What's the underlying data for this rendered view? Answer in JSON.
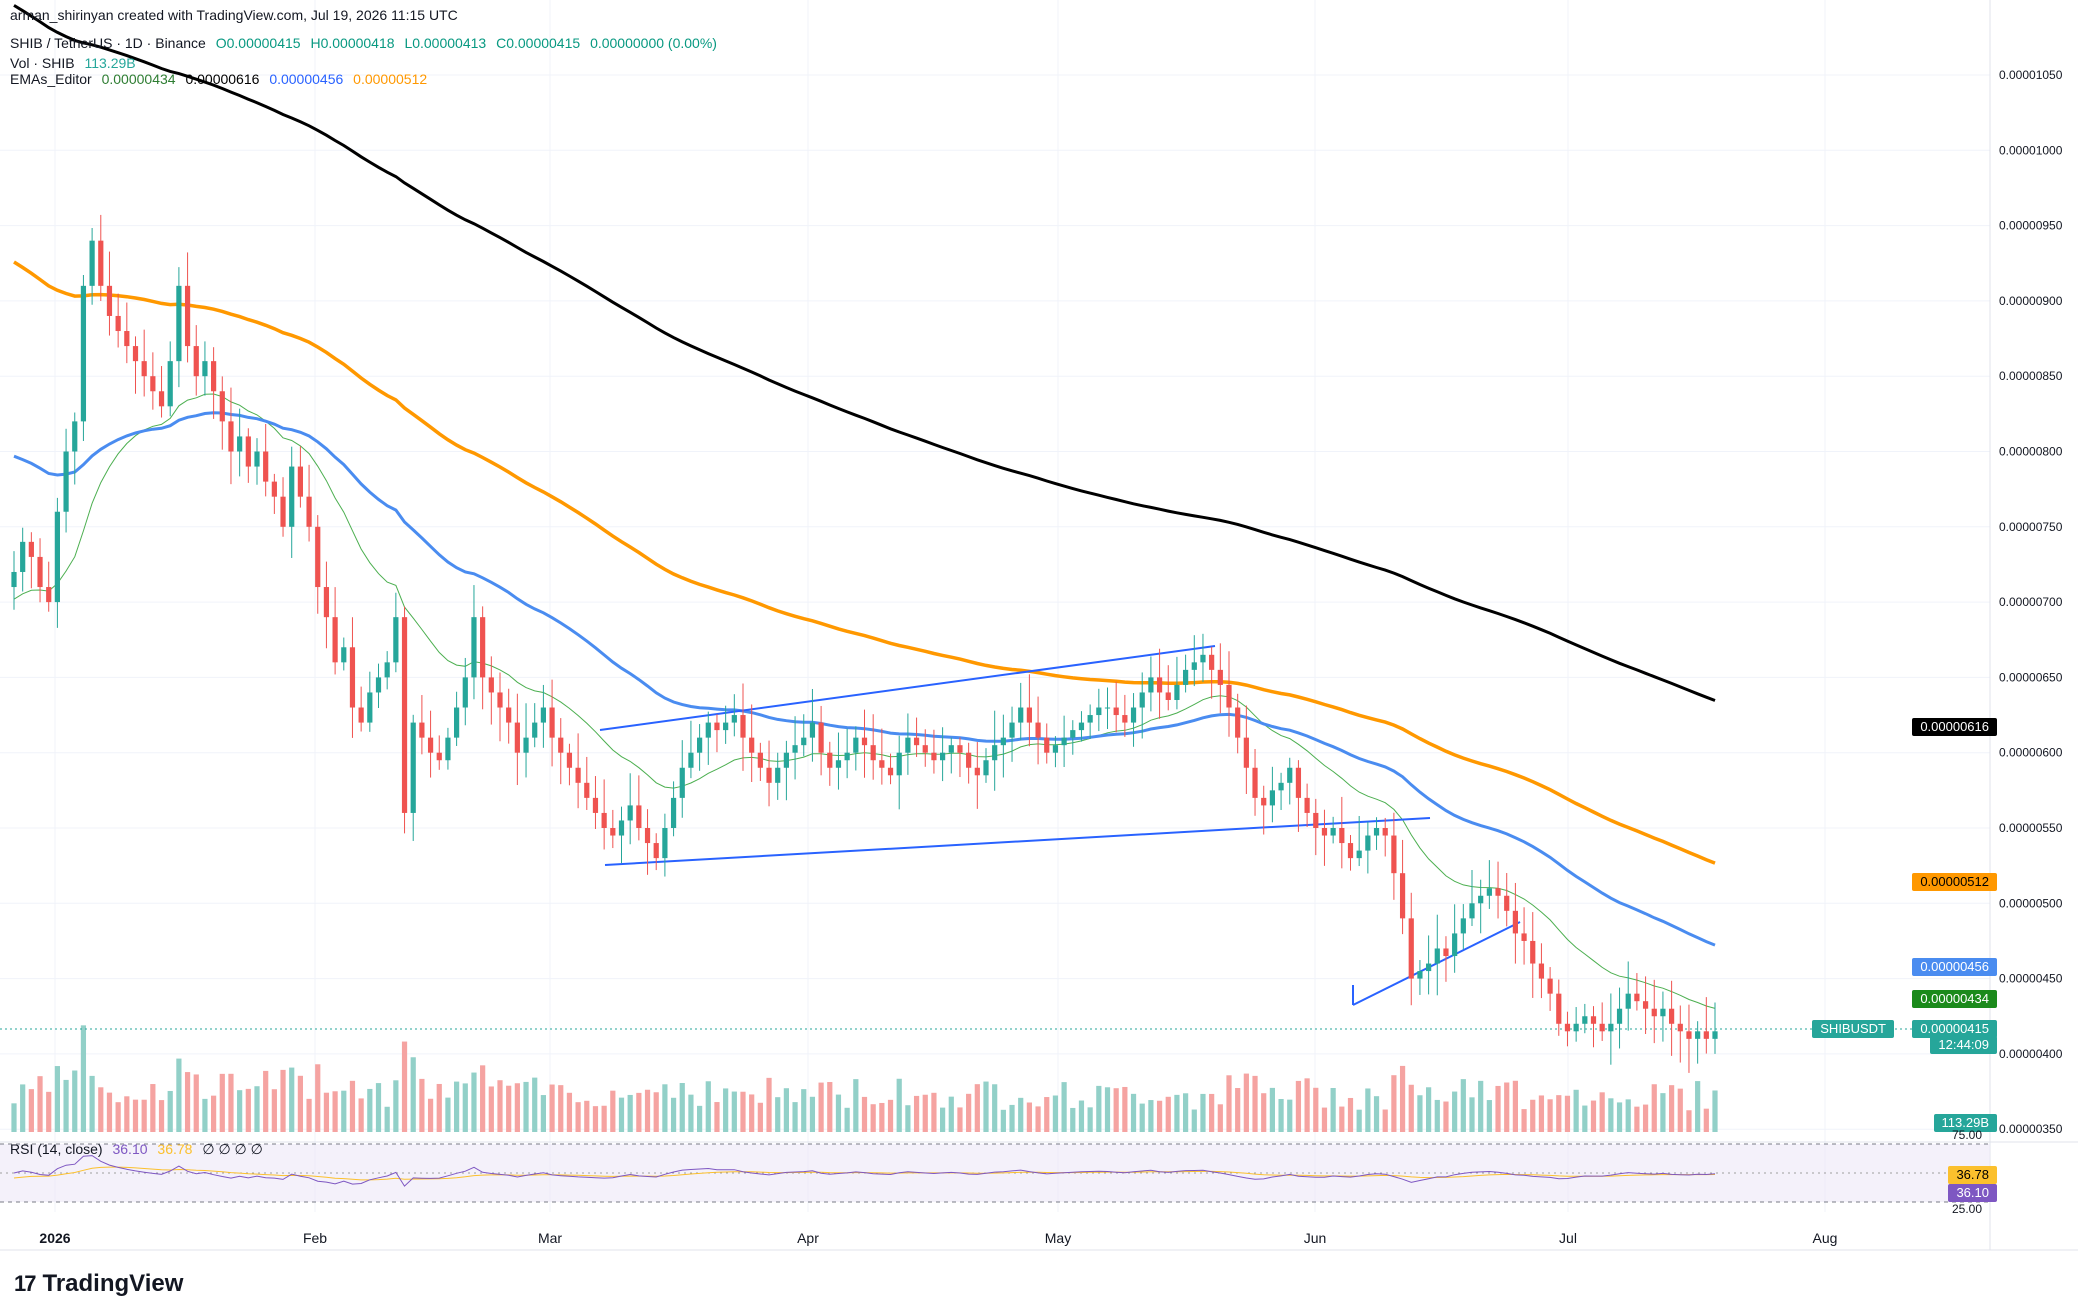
{
  "header": {
    "credit": "arman_shirinyan created with TradingView.com, Jul 19, 2026 11:15 UTC",
    "symbol_line": {
      "symbol": "SHIB / TetherUS · 1D · Binance",
      "o": "O0.00000415",
      "h": "H0.00000418",
      "l": "L0.00000413",
      "c": "C0.00000415",
      "chg": "0.00000000 (0.00%)"
    },
    "vol_line": {
      "label": "Vol · SHIB",
      "value": "113.29B"
    },
    "ema_line": {
      "label": "EMAs_Editor",
      "v1": "0.00000434",
      "v2": "0.00000616",
      "v3": "0.00000456",
      "v4": "0.00000512"
    }
  },
  "rsi_pane": {
    "label": "RSI (14, close)",
    "value": "36.10",
    "ma": "36.78",
    "zeros": "∅ ∅ ∅ ∅",
    "upper": "75.00",
    "lower": "25.00"
  },
  "tags": {
    "black": "0.00000616",
    "orange": "0.00000512",
    "blue": "0.00000456",
    "green": "0.00000434",
    "ticker": "SHIBUSDT",
    "price": "0.00000415",
    "countdown": "12:44:09",
    "volume": "113.29B"
  },
  "logo": {
    "text": "TradingView"
  },
  "chart_data": {
    "type": "candlestick",
    "y_axis_ticks": [
      "0.00001050",
      "0.00001000",
      "0.00000950",
      "0.00000900",
      "0.00000850",
      "0.00000800",
      "0.00000750",
      "0.00000700",
      "0.00000650",
      "0.00000600",
      "0.00000550",
      "0.00000500",
      "0.00000450",
      "0.00000400",
      "0.00000350"
    ],
    "x_axis_ticks": [
      "2026",
      "Feb",
      "Mar",
      "Apr",
      "May",
      "Jun",
      "Jul",
      "Aug"
    ],
    "colors": {
      "up": "#26a69a",
      "down": "#ef5350",
      "vol_up": "#92d0c8",
      "vol_down": "#f5a3a1",
      "ema20": "#4caf50",
      "ema50": "#4a8cf0",
      "ema100": "#ff9800",
      "ema200": "#000000",
      "trendline": "#2962ff",
      "rsi": "#7e57c2",
      "rsi_ma": "#fbc02d"
    },
    "closes": [
      7.2,
      7.4,
      7.3,
      7.1,
      7.0,
      7.6,
      8.0,
      8.2,
      9.1,
      9.4,
      9.1,
      8.9,
      8.8,
      8.7,
      8.6,
      8.5,
      8.4,
      8.3,
      8.6,
      9.1,
      8.7,
      8.5,
      8.6,
      8.4,
      8.2,
      8.0,
      8.1,
      7.9,
      8.0,
      7.8,
      7.7,
      7.5,
      7.9,
      7.7,
      7.5,
      7.1,
      6.9,
      6.6,
      6.7,
      6.3,
      6.2,
      6.4,
      6.5,
      6.6,
      6.9,
      5.6,
      6.2,
      6.1,
      6.0,
      5.95,
      6.1,
      6.3,
      6.5,
      6.9,
      6.5,
      6.4,
      6.3,
      6.2,
      6.0,
      6.1,
      6.2,
      6.3,
      6.1,
      6.0,
      5.9,
      5.8,
      5.7,
      5.6,
      5.5,
      5.45,
      5.55,
      5.65,
      5.5,
      5.4,
      5.3,
      5.5,
      5.7,
      5.9,
      6.0,
      6.1,
      6.2,
      6.15,
      6.2,
      6.25,
      6.1,
      6.0,
      5.9,
      5.8,
      5.9,
      6.0,
      6.05,
      6.1,
      6.2,
      6.0,
      5.9,
      5.95,
      6.0,
      6.1,
      6.05,
      5.95,
      5.9,
      5.85,
      6.0,
      6.1,
      6.05,
      6.0,
      5.95,
      6.0,
      6.05,
      6.0,
      5.9,
      5.85,
      5.95,
      6.05,
      6.1,
      6.2,
      6.3,
      6.2,
      6.1,
      6.0,
      6.05,
      6.1,
      6.15,
      6.2,
      6.25,
      6.3,
      6.3,
      6.25,
      6.2,
      6.3,
      6.4,
      6.5,
      6.4,
      6.35,
      6.45,
      6.55,
      6.6,
      6.65,
      6.55,
      6.45,
      6.3,
      6.1,
      5.9,
      5.7,
      5.65,
      5.75,
      5.8,
      5.9,
      5.7,
      5.6,
      5.5,
      5.45,
      5.5,
      5.4,
      5.3,
      5.35,
      5.45,
      5.5,
      5.45,
      5.2,
      4.9,
      4.5,
      4.55,
      4.6,
      4.7,
      4.65,
      4.8,
      4.9,
      5.0,
      5.05,
      5.1,
      5.05,
      4.95,
      4.8,
      4.75,
      4.6,
      4.5,
      4.4,
      4.2,
      4.15,
      4.2,
      4.25,
      4.2,
      4.15,
      4.2,
      4.3,
      4.4,
      4.35,
      4.3,
      4.25,
      4.3,
      4.2,
      4.15,
      4.1,
      4.15,
      4.1,
      4.15
    ]
  }
}
